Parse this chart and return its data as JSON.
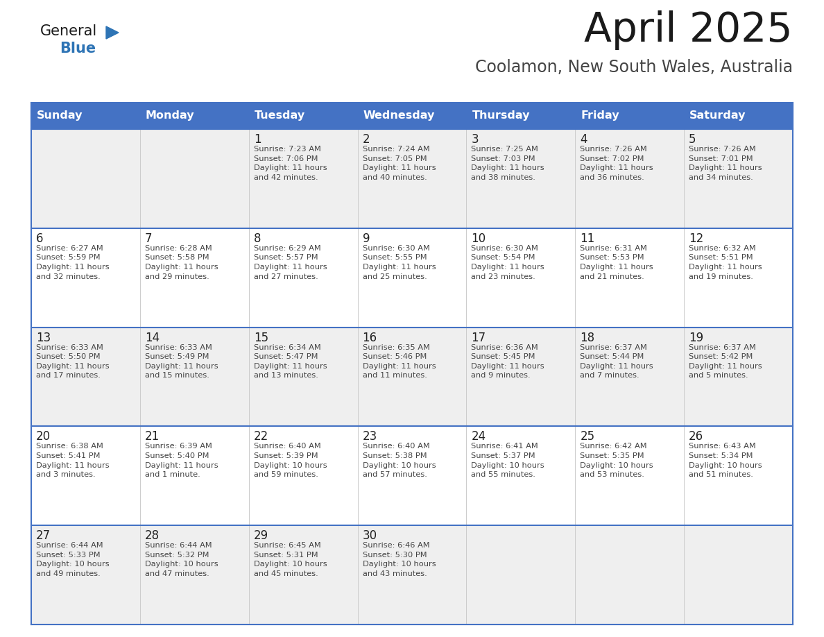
{
  "title": "April 2025",
  "subtitle": "Coolamon, New South Wales, Australia",
  "days_of_week": [
    "Sunday",
    "Monday",
    "Tuesday",
    "Wednesday",
    "Thursday",
    "Friday",
    "Saturday"
  ],
  "header_bg": "#4472C4",
  "header_text_color": "#FFFFFF",
  "row_bg_odd": "#EFEFEF",
  "row_bg_even": "#FFFFFF",
  "border_color": "#4472C4",
  "cell_border_color": "#AAAAAA",
  "text_color": "#333333",
  "day_num_color": "#222222",
  "title_color": "#1A1A1A",
  "subtitle_color": "#444444",
  "logo_general_color": "#1A1A1A",
  "logo_blue_color": "#2E74B5",
  "triangle_color": "#2E74B5",
  "weeks": [
    [
      {
        "day": "",
        "info": ""
      },
      {
        "day": "",
        "info": ""
      },
      {
        "day": "1",
        "info": "Sunrise: 7:23 AM\nSunset: 7:06 PM\nDaylight: 11 hours\nand 42 minutes."
      },
      {
        "day": "2",
        "info": "Sunrise: 7:24 AM\nSunset: 7:05 PM\nDaylight: 11 hours\nand 40 minutes."
      },
      {
        "day": "3",
        "info": "Sunrise: 7:25 AM\nSunset: 7:03 PM\nDaylight: 11 hours\nand 38 minutes."
      },
      {
        "day": "4",
        "info": "Sunrise: 7:26 AM\nSunset: 7:02 PM\nDaylight: 11 hours\nand 36 minutes."
      },
      {
        "day": "5",
        "info": "Sunrise: 7:26 AM\nSunset: 7:01 PM\nDaylight: 11 hours\nand 34 minutes."
      }
    ],
    [
      {
        "day": "6",
        "info": "Sunrise: 6:27 AM\nSunset: 5:59 PM\nDaylight: 11 hours\nand 32 minutes."
      },
      {
        "day": "7",
        "info": "Sunrise: 6:28 AM\nSunset: 5:58 PM\nDaylight: 11 hours\nand 29 minutes."
      },
      {
        "day": "8",
        "info": "Sunrise: 6:29 AM\nSunset: 5:57 PM\nDaylight: 11 hours\nand 27 minutes."
      },
      {
        "day": "9",
        "info": "Sunrise: 6:30 AM\nSunset: 5:55 PM\nDaylight: 11 hours\nand 25 minutes."
      },
      {
        "day": "10",
        "info": "Sunrise: 6:30 AM\nSunset: 5:54 PM\nDaylight: 11 hours\nand 23 minutes."
      },
      {
        "day": "11",
        "info": "Sunrise: 6:31 AM\nSunset: 5:53 PM\nDaylight: 11 hours\nand 21 minutes."
      },
      {
        "day": "12",
        "info": "Sunrise: 6:32 AM\nSunset: 5:51 PM\nDaylight: 11 hours\nand 19 minutes."
      }
    ],
    [
      {
        "day": "13",
        "info": "Sunrise: 6:33 AM\nSunset: 5:50 PM\nDaylight: 11 hours\nand 17 minutes."
      },
      {
        "day": "14",
        "info": "Sunrise: 6:33 AM\nSunset: 5:49 PM\nDaylight: 11 hours\nand 15 minutes."
      },
      {
        "day": "15",
        "info": "Sunrise: 6:34 AM\nSunset: 5:47 PM\nDaylight: 11 hours\nand 13 minutes."
      },
      {
        "day": "16",
        "info": "Sunrise: 6:35 AM\nSunset: 5:46 PM\nDaylight: 11 hours\nand 11 minutes."
      },
      {
        "day": "17",
        "info": "Sunrise: 6:36 AM\nSunset: 5:45 PM\nDaylight: 11 hours\nand 9 minutes."
      },
      {
        "day": "18",
        "info": "Sunrise: 6:37 AM\nSunset: 5:44 PM\nDaylight: 11 hours\nand 7 minutes."
      },
      {
        "day": "19",
        "info": "Sunrise: 6:37 AM\nSunset: 5:42 PM\nDaylight: 11 hours\nand 5 minutes."
      }
    ],
    [
      {
        "day": "20",
        "info": "Sunrise: 6:38 AM\nSunset: 5:41 PM\nDaylight: 11 hours\nand 3 minutes."
      },
      {
        "day": "21",
        "info": "Sunrise: 6:39 AM\nSunset: 5:40 PM\nDaylight: 11 hours\nand 1 minute."
      },
      {
        "day": "22",
        "info": "Sunrise: 6:40 AM\nSunset: 5:39 PM\nDaylight: 10 hours\nand 59 minutes."
      },
      {
        "day": "23",
        "info": "Sunrise: 6:40 AM\nSunset: 5:38 PM\nDaylight: 10 hours\nand 57 minutes."
      },
      {
        "day": "24",
        "info": "Sunrise: 6:41 AM\nSunset: 5:37 PM\nDaylight: 10 hours\nand 55 minutes."
      },
      {
        "day": "25",
        "info": "Sunrise: 6:42 AM\nSunset: 5:35 PM\nDaylight: 10 hours\nand 53 minutes."
      },
      {
        "day": "26",
        "info": "Sunrise: 6:43 AM\nSunset: 5:34 PM\nDaylight: 10 hours\nand 51 minutes."
      }
    ],
    [
      {
        "day": "27",
        "info": "Sunrise: 6:44 AM\nSunset: 5:33 PM\nDaylight: 10 hours\nand 49 minutes."
      },
      {
        "day": "28",
        "info": "Sunrise: 6:44 AM\nSunset: 5:32 PM\nDaylight: 10 hours\nand 47 minutes."
      },
      {
        "day": "29",
        "info": "Sunrise: 6:45 AM\nSunset: 5:31 PM\nDaylight: 10 hours\nand 45 minutes."
      },
      {
        "day": "30",
        "info": "Sunrise: 6:46 AM\nSunset: 5:30 PM\nDaylight: 10 hours\nand 43 minutes."
      },
      {
        "day": "",
        "info": ""
      },
      {
        "day": "",
        "info": ""
      },
      {
        "day": "",
        "info": ""
      }
    ]
  ]
}
